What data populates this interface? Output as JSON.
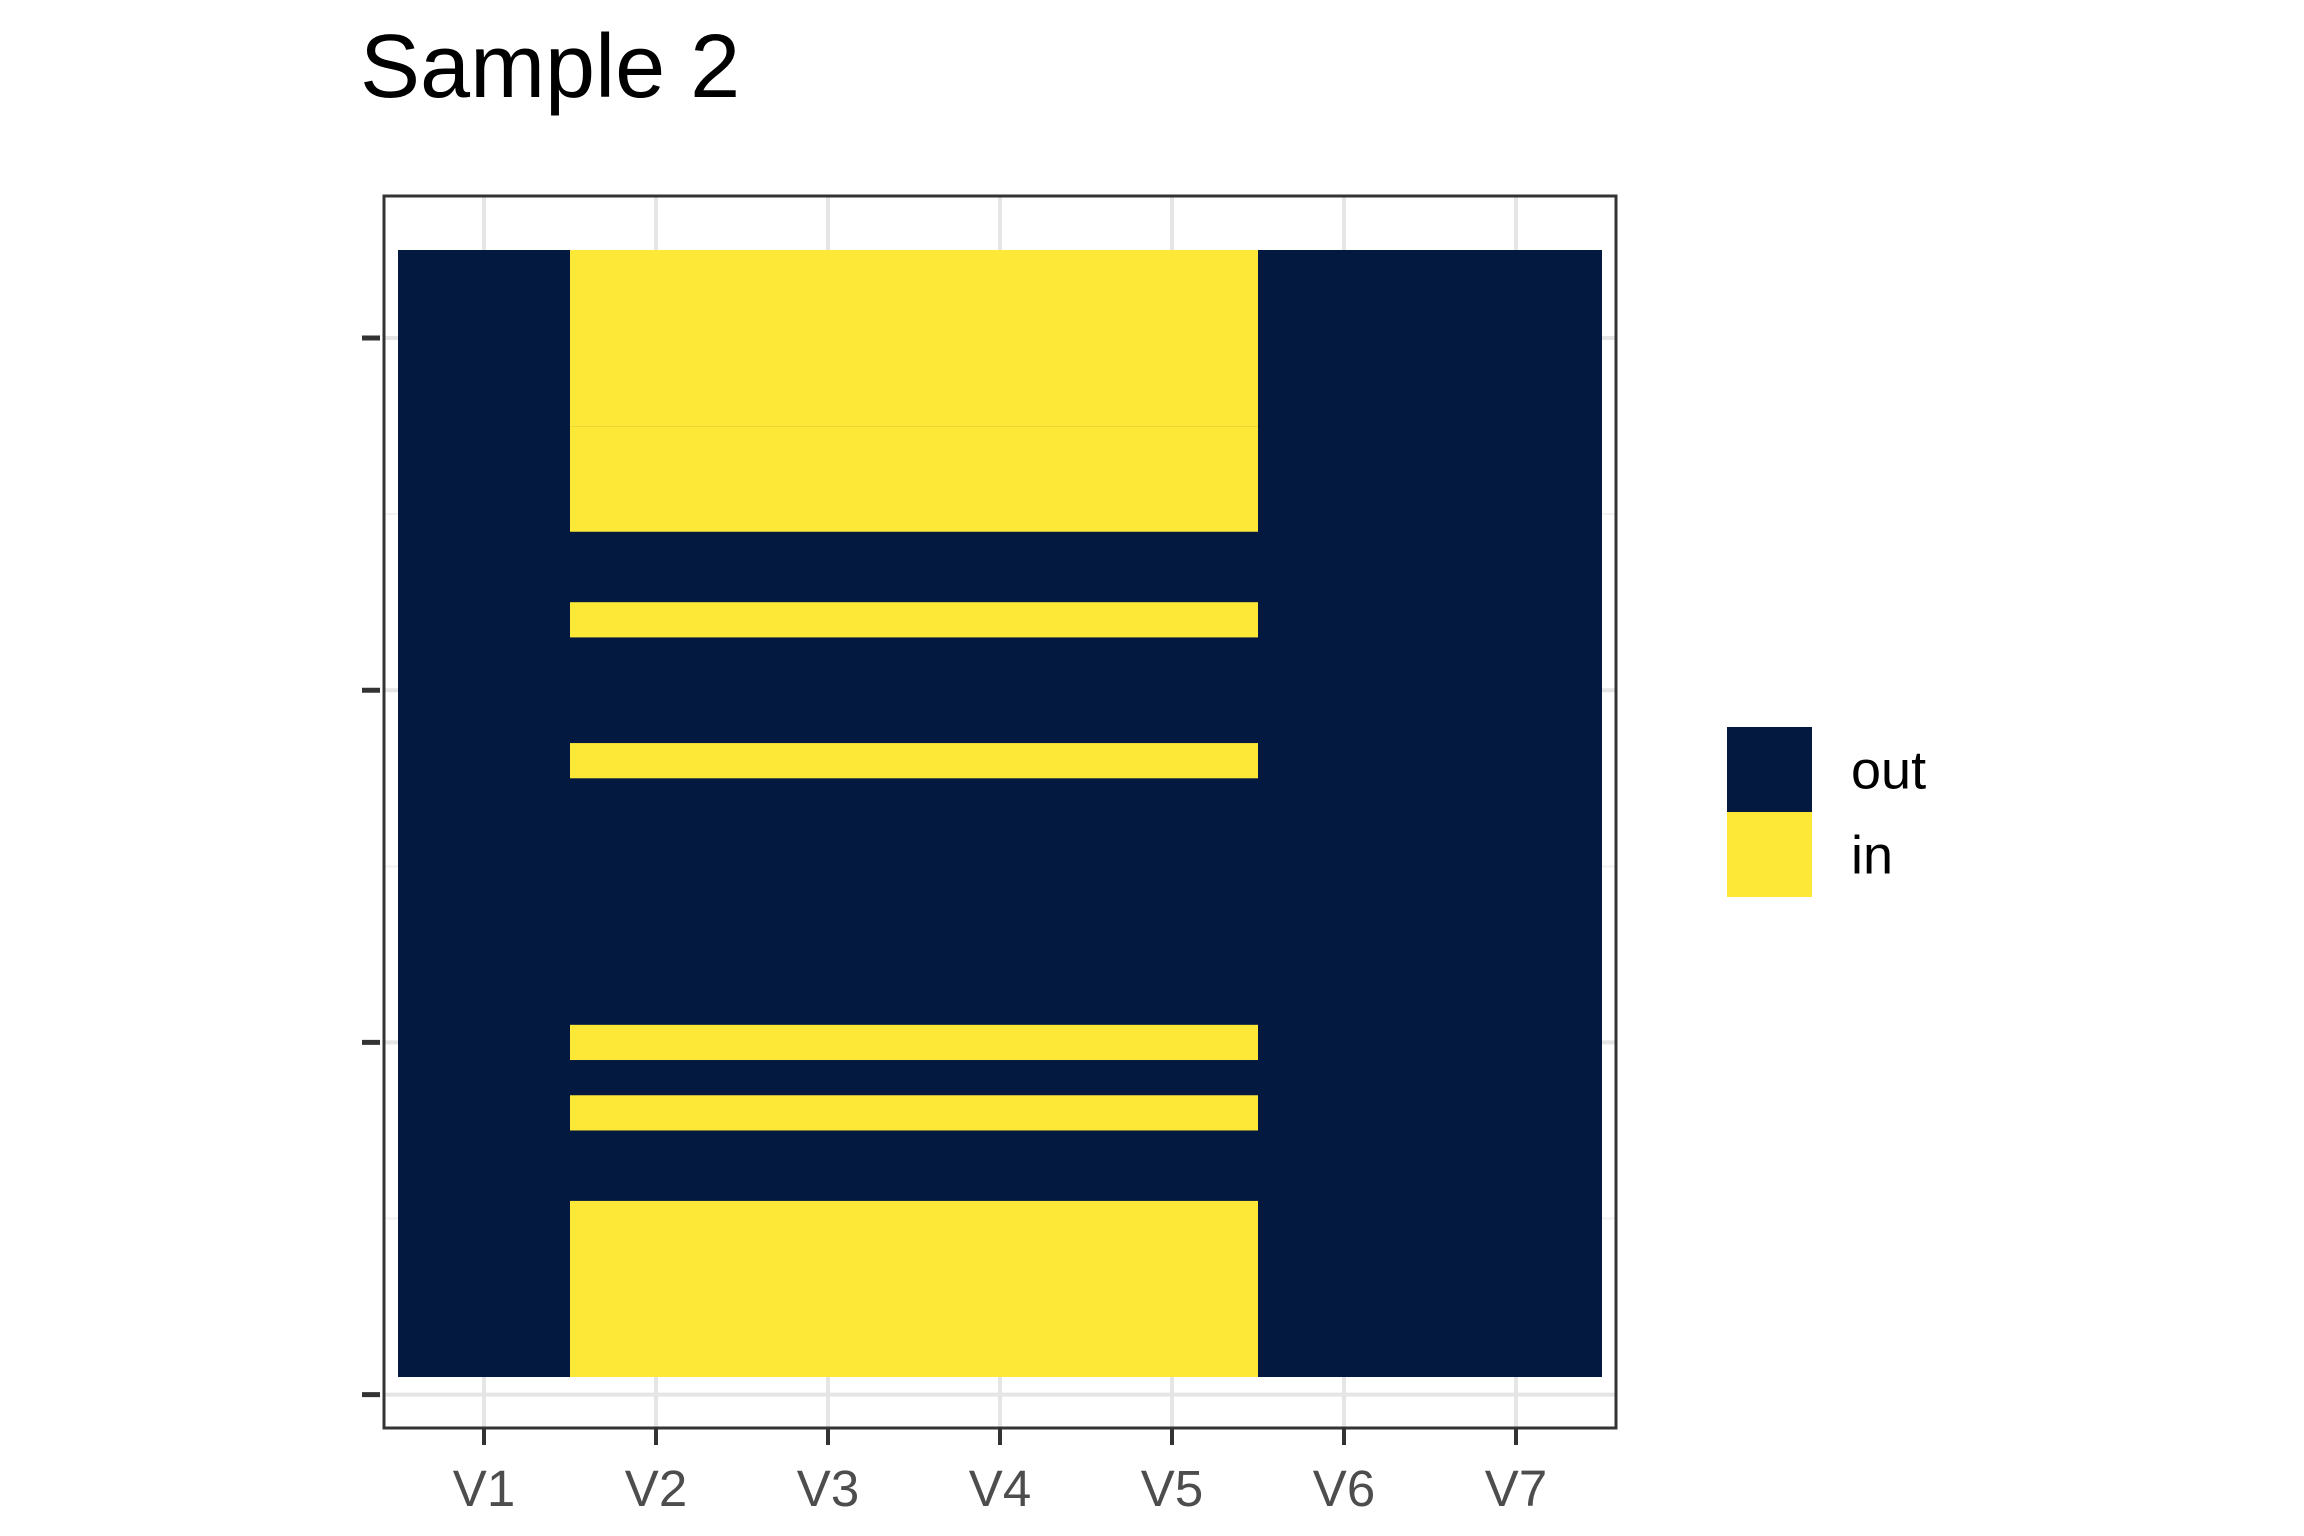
{
  "chart_data": {
    "type": "heatmap",
    "title": "Sample 2",
    "xlabel": "",
    "ylabel": "",
    "x_categories": [
      "V1",
      "V2",
      "V3",
      "V4",
      "V5",
      "V6",
      "V7"
    ],
    "y_range": [
      0,
      32
    ],
    "y_ticks": [
      0,
      10,
      20,
      30
    ],
    "y_tick_labels": [
      "",
      "",
      "",
      ""
    ],
    "grid": true,
    "legend_position": "right",
    "categories": [
      "out",
      "in"
    ],
    "colors": {
      "out": "#03193F",
      "in": "#FEE837"
    },
    "cells": [
      {
        "x": "V1",
        "y0": 0.5,
        "y1": 32.5,
        "value": "out"
      },
      {
        "x": "V2",
        "y0": 0.5,
        "y1": 5.5,
        "value": "in"
      },
      {
        "x": "V2",
        "y0": 5.5,
        "y1": 7.5,
        "value": "out"
      },
      {
        "x": "V2",
        "y0": 7.5,
        "y1": 8.5,
        "value": "in"
      },
      {
        "x": "V2",
        "y0": 8.5,
        "y1": 9.5,
        "value": "out"
      },
      {
        "x": "V2",
        "y0": 9.5,
        "y1": 10.5,
        "value": "in"
      },
      {
        "x": "V2",
        "y0": 10.5,
        "y1": 12.5,
        "value": "out"
      },
      {
        "x": "V2",
        "y0": 12.5,
        "y1": 17.5,
        "value": "in"
      },
      {
        "x": "V2",
        "y0": 17.5,
        "y1": 18.5,
        "value": "out"
      },
      {
        "x": "V2",
        "y0": 18.5,
        "y1": 20.5,
        "value": "in"
      },
      {
        "x": "V2",
        "y0": 20.5,
        "y1": 21.5,
        "value": "out"
      },
      {
        "x": "V2",
        "y0": 21.5,
        "y1": 22.5,
        "value": "in"
      },
      {
        "x": "V2",
        "y0": 22.5,
        "y1": 23.5,
        "value": "out"
      },
      {
        "x": "V2",
        "y0": 23.5,
        "y1": 24.5,
        "value": "in"
      },
      {
        "x": "V2",
        "y0": 24.5,
        "y1": 25.5,
        "value": "out"
      },
      {
        "x": "V2",
        "y0": 25.5,
        "y1": 27.5,
        "value": "in"
      },
      {
        "x": "V2",
        "y0": 27.5,
        "y1": 32.5,
        "value": "in"
      },
      {
        "x": "V6",
        "y0": 0.5,
        "y1": 32.5,
        "value": "out"
      },
      {
        "x": "V7",
        "y0": 0.5,
        "y1": 32.5,
        "value": "out"
      }
    ],
    "in_rows_for_V2_to_V5": [
      [
        0.5,
        5.5
      ],
      [
        7.5,
        8.5
      ],
      [
        9.5,
        10.5
      ],
      [
        17.5,
        18.5
      ],
      [
        21.5,
        22.5
      ],
      [
        24.5,
        27.5
      ],
      [
        27.5,
        32.5
      ]
    ]
  }
}
